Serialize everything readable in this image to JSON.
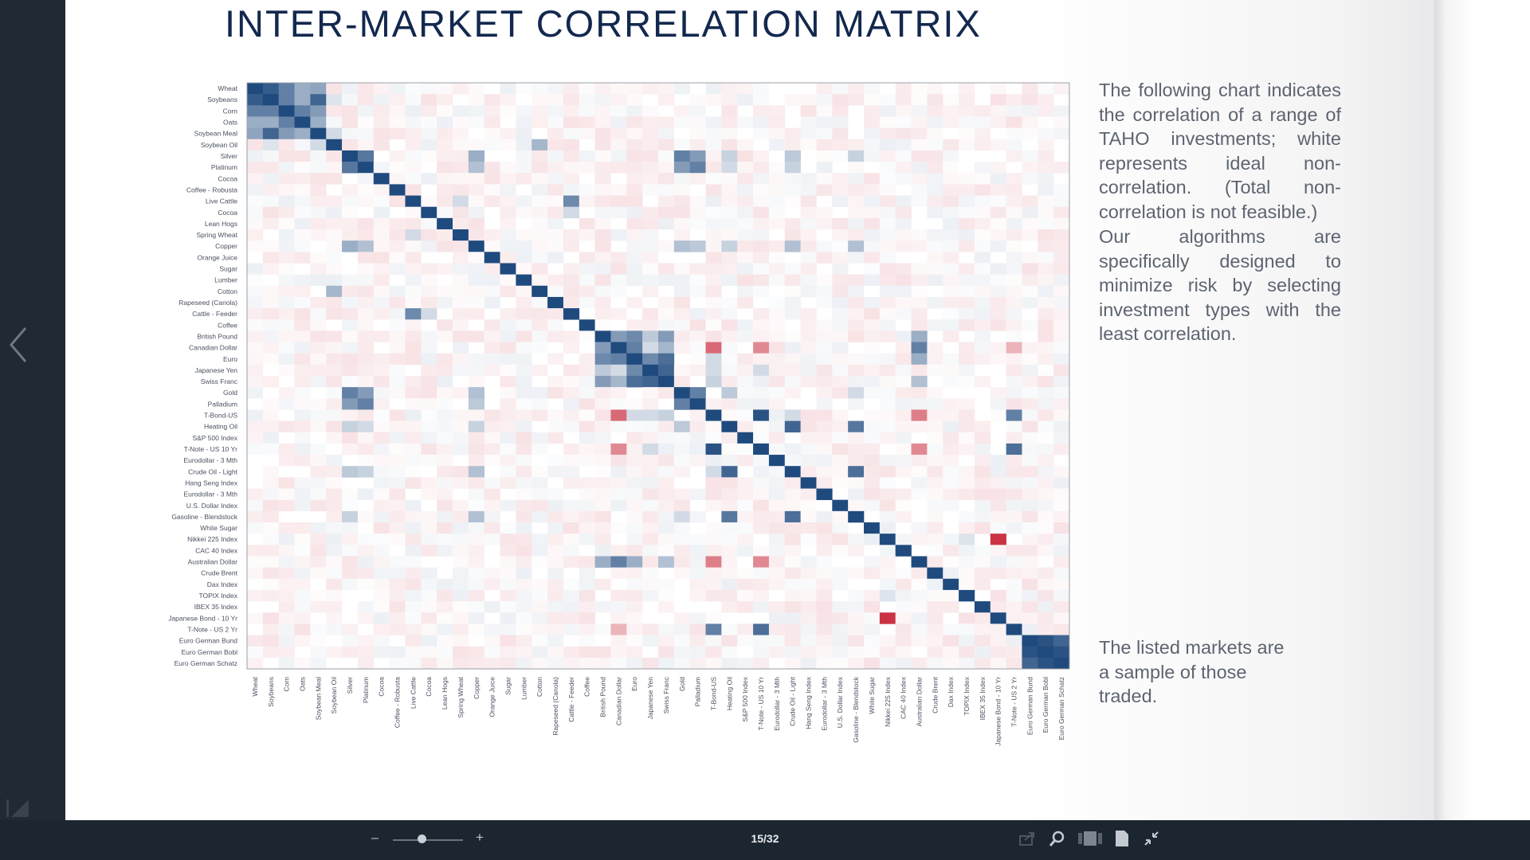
{
  "page": {
    "title": "INTER-MARKET CORRELATION MATRIX",
    "paragraphs": [
      "The following chart indicates the correlation of a range of TAHO investments; white represents ideal non-correlation. (Total non-correlation is not feasible.)",
      "Our algorithms are specifically designed to minimize risk by selecting investment types with the least correlation.",
      "The listed markets are a sample of those traded."
    ]
  },
  "viewer": {
    "page_counter": "15/32",
    "zoom_out_label": "–",
    "zoom_in_label": "+",
    "zoom_level": 0.42,
    "icons": [
      "chevron-left-icon",
      "first-page-icon",
      "share-icon",
      "search-icon",
      "thumbnails-icon",
      "single-page-icon",
      "fullscreen-exit-icon"
    ]
  },
  "chart_data": {
    "type": "heatmap",
    "title": "",
    "markets": [
      "Wheat",
      "Soybeans",
      "Corn",
      "Oats",
      "Soybean Meal",
      "Soybean Oil",
      "Silver",
      "Platinum",
      "Cocoa",
      "Coffee - Robusta",
      "Live Cattle",
      "Cocoa",
      "Lean Hogs",
      "Spring Wheat",
      "Copper",
      "Orange Juice",
      "Sugar",
      "Lumber",
      "Cotton",
      "Rapeseed (Canola)",
      "Cattle - Feeder",
      "Coffee",
      "British Pound",
      "Canadian Dollar",
      "Euro",
      "Japanese Yen",
      "Swiss Franc",
      "Gold",
      "Palladium",
      "T-Bond-US",
      "Heating Oil",
      "S&P 500 Index",
      "T-Note - US 10 Yr",
      "Eurodollar - 3 Mth",
      "Crude Oil - Light",
      "Hang Seng Index",
      "Eurodollar - 3 Mth",
      "U.S. Dollar Index",
      "Gasoline - Blendstock",
      "White Sugar",
      "Nikkei 225 Index",
      "CAC 40 Index",
      "Australian Dollar",
      "Crude Brent",
      "Dax Index",
      "TOPIX Index",
      "IBEX 35 Index",
      "Japanese Bond - 10 Yr",
      "T-Note - US 2 Yr",
      "Euro German Bund",
      "Euro German Bobl",
      "Euro German Schatz"
    ],
    "color_scale": {
      "positive": "#1f4a7e",
      "zero": "#ffffff",
      "negative": "#c8283a"
    },
    "strong_correlations": [
      {
        "i": 0,
        "j": 1,
        "v": 0.9
      },
      {
        "i": 0,
        "j": 2,
        "v": 0.7
      },
      {
        "i": 0,
        "j": 3,
        "v": 0.45
      },
      {
        "i": 0,
        "j": 4,
        "v": 0.5
      },
      {
        "i": 1,
        "j": 2,
        "v": 0.7
      },
      {
        "i": 1,
        "j": 3,
        "v": 0.45
      },
      {
        "i": 1,
        "j": 4,
        "v": 0.85
      },
      {
        "i": 1,
        "j": 5,
        "v": 0.15
      },
      {
        "i": 2,
        "j": 3,
        "v": 0.7
      },
      {
        "i": 2,
        "j": 4,
        "v": 0.55
      },
      {
        "i": 3,
        "j": 4,
        "v": 0.45
      },
      {
        "i": 4,
        "j": 5,
        "v": 0.2
      },
      {
        "i": 5,
        "j": 18,
        "v": 0.4
      },
      {
        "i": 6,
        "j": 7,
        "v": 0.75
      },
      {
        "i": 6,
        "j": 14,
        "v": 0.45
      },
      {
        "i": 6,
        "j": 27,
        "v": 0.7
      },
      {
        "i": 6,
        "j": 28,
        "v": 0.55
      },
      {
        "i": 6,
        "j": 30,
        "v": 0.25
      },
      {
        "i": 6,
        "j": 34,
        "v": 0.3
      },
      {
        "i": 6,
        "j": 38,
        "v": 0.25
      },
      {
        "i": 7,
        "j": 14,
        "v": 0.35
      },
      {
        "i": 7,
        "j": 27,
        "v": 0.55
      },
      {
        "i": 7,
        "j": 28,
        "v": 0.7
      },
      {
        "i": 7,
        "j": 30,
        "v": 0.2
      },
      {
        "i": 7,
        "j": 34,
        "v": 0.25
      },
      {
        "i": 10,
        "j": 20,
        "v": 0.65
      },
      {
        "i": 10,
        "j": 13,
        "v": 0.2
      },
      {
        "i": 11,
        "j": 20,
        "v": 0.2
      },
      {
        "i": 14,
        "j": 27,
        "v": 0.35
      },
      {
        "i": 14,
        "j": 28,
        "v": 0.3
      },
      {
        "i": 14,
        "j": 30,
        "v": 0.25
      },
      {
        "i": 14,
        "j": 34,
        "v": 0.35
      },
      {
        "i": 14,
        "j": 38,
        "v": 0.35
      },
      {
        "i": 22,
        "j": 23,
        "v": 0.55
      },
      {
        "i": 22,
        "j": 24,
        "v": 0.65
      },
      {
        "i": 22,
        "j": 25,
        "v": 0.3
      },
      {
        "i": 22,
        "j": 26,
        "v": 0.55
      },
      {
        "i": 22,
        "j": 42,
        "v": 0.45
      },
      {
        "i": 23,
        "j": 24,
        "v": 0.7
      },
      {
        "i": 23,
        "j": 25,
        "v": 0.2
      },
      {
        "i": 23,
        "j": 26,
        "v": 0.4
      },
      {
        "i": 23,
        "j": 29,
        "v": -0.7
      },
      {
        "i": 23,
        "j": 32,
        "v": -0.55
      },
      {
        "i": 23,
        "j": 42,
        "v": 0.7
      },
      {
        "i": 23,
        "j": 48,
        "v": -0.35
      },
      {
        "i": 24,
        "j": 25,
        "v": 0.65
      },
      {
        "i": 24,
        "j": 26,
        "v": 0.8
      },
      {
        "i": 24,
        "j": 42,
        "v": 0.45
      },
      {
        "i": 24,
        "j": 29,
        "v": 0.2
      },
      {
        "i": 25,
        "j": 26,
        "v": 0.85
      },
      {
        "i": 25,
        "j": 29,
        "v": 0.2
      },
      {
        "i": 25,
        "j": 32,
        "v": 0.2
      },
      {
        "i": 26,
        "j": 42,
        "v": 0.35
      },
      {
        "i": 26,
        "j": 29,
        "v": 0.25
      },
      {
        "i": 27,
        "j": 28,
        "v": 0.7
      },
      {
        "i": 27,
        "j": 30,
        "v": 0.3
      },
      {
        "i": 27,
        "j": 38,
        "v": 0.2
      },
      {
        "i": 29,
        "j": 32,
        "v": 0.95
      },
      {
        "i": 29,
        "j": 34,
        "v": 0.2
      },
      {
        "i": 29,
        "j": 42,
        "v": -0.6
      },
      {
        "i": 29,
        "j": 48,
        "v": 0.7
      },
      {
        "i": 30,
        "j": 34,
        "v": 0.85
      },
      {
        "i": 30,
        "j": 38,
        "v": 0.75
      },
      {
        "i": 34,
        "j": 38,
        "v": 0.8
      },
      {
        "i": 32,
        "j": 42,
        "v": -0.55
      },
      {
        "i": 32,
        "j": 48,
        "v": 0.8
      },
      {
        "i": 40,
        "j": 47,
        "v": -0.95
      },
      {
        "i": 40,
        "j": 45,
        "v": 0.15
      },
      {
        "i": 49,
        "j": 50,
        "v": 0.95
      },
      {
        "i": 49,
        "j": 51,
        "v": 0.85
      },
      {
        "i": 50,
        "j": 51,
        "v": 0.95
      }
    ]
  }
}
